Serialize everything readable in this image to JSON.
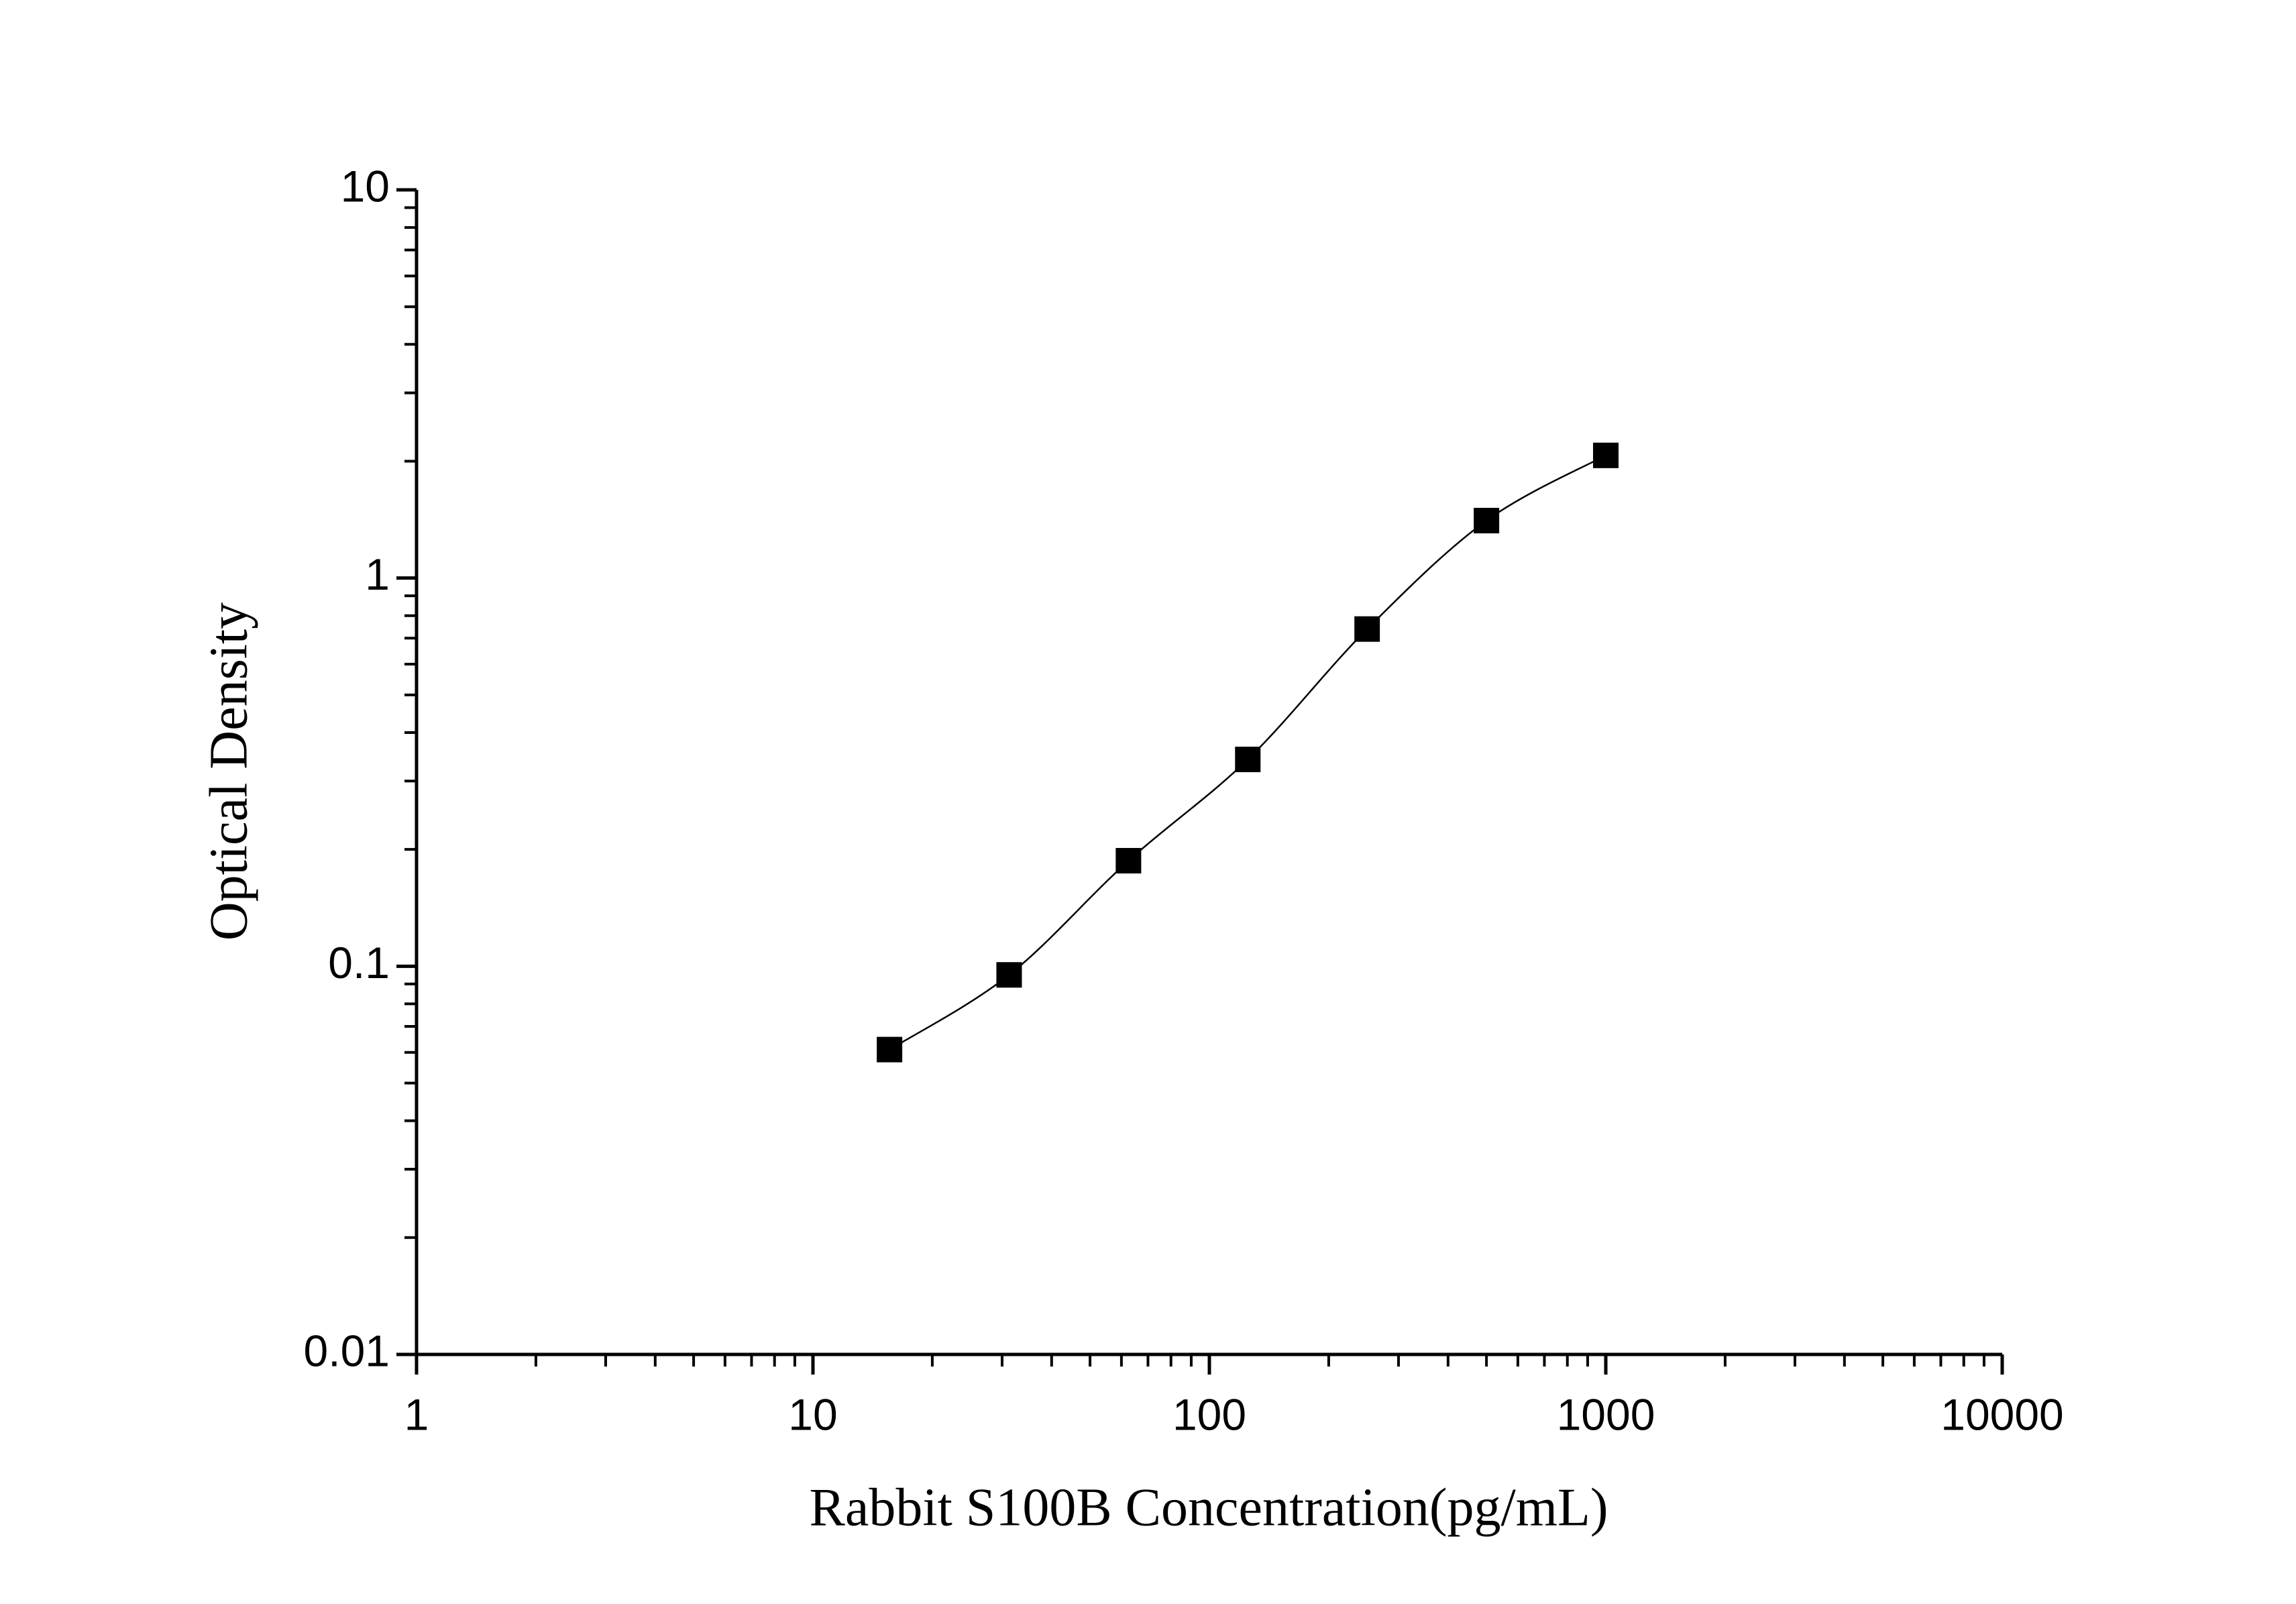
{
  "chart_data": {
    "type": "scatter",
    "x_label": "Rabbit S100B Concentration(pg/mL)",
    "y_label": "Optical Density",
    "x": [
      15.6,
      31.25,
      62.5,
      125,
      250,
      500,
      1000
    ],
    "values": [
      0.061,
      0.095,
      0.187,
      0.341,
      0.739,
      1.406,
      2.07
    ],
    "color": "#000000",
    "fit_line": true,
    "xscale": "log",
    "yscale": "log",
    "xlim": [
      1,
      10000
    ],
    "xticks": [
      1,
      10,
      100,
      1000,
      10000
    ],
    "ylim": [
      0.01,
      10
    ],
    "yticks": [
      0.01,
      0.1,
      1,
      10
    ],
    "minor_ticks": true
  }
}
